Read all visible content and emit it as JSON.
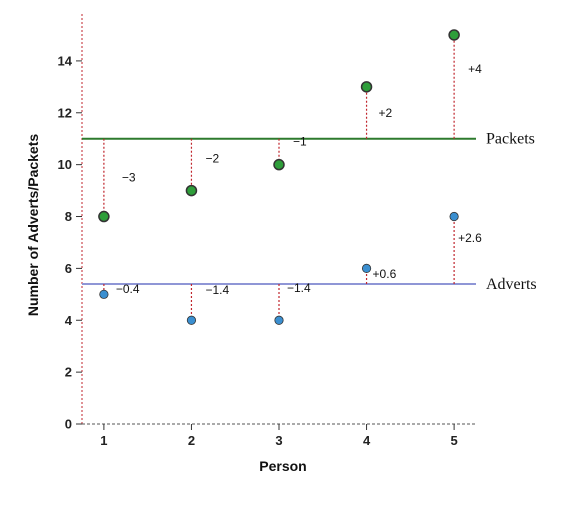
{
  "chart_data": {
    "type": "scatter",
    "title": "",
    "xlabel": "Person",
    "ylabel": "Number of Adverts/Packets",
    "x": [
      1,
      2,
      3,
      4,
      5
    ],
    "xlim": [
      0.75,
      5.25
    ],
    "ylim": [
      0,
      15.5
    ],
    "x_ticks": [
      "1",
      "2",
      "3",
      "4",
      "5"
    ],
    "y_ticks": [
      "0",
      "2",
      "4",
      "6",
      "8",
      "10",
      "12",
      "14"
    ],
    "series": [
      {
        "name": "Packets",
        "values": [
          8,
          9,
          10,
          13,
          15
        ],
        "mean": 11,
        "deviation_labels": [
          "−3",
          "−2",
          "−1",
          "+2",
          "+4"
        ],
        "point_color": "#2e9e3a",
        "line_color": "#2d7a2d"
      },
      {
        "name": "Adverts",
        "values": [
          5,
          4,
          4,
          6,
          8
        ],
        "mean": 5.4,
        "deviation_labels": [
          "−0.4",
          "−1.4",
          "−1.4",
          "+0.6",
          "+2.6"
        ],
        "point_color": "#3b8fd0",
        "line_color": "#8f96d6"
      }
    ],
    "deviation_line_color": "#c0262d",
    "grid": false
  }
}
